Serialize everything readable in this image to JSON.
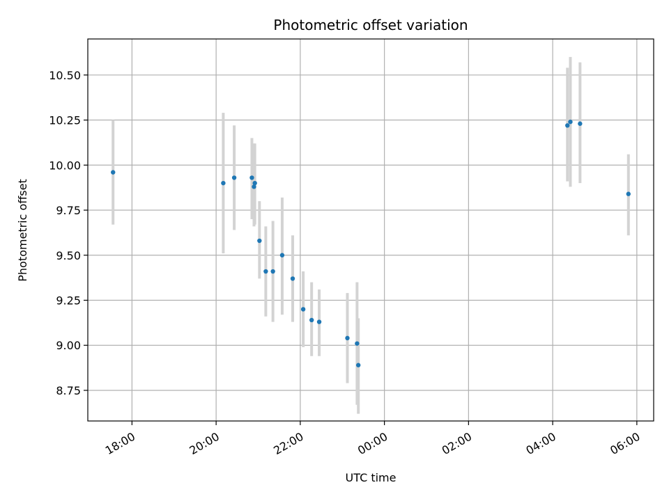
{
  "chart_data": {
    "type": "scatter",
    "title": "Photometric offset variation",
    "xlabel": "UTC time",
    "ylabel": "Photometric offset",
    "x_unit": "hours",
    "xlim": [
      16.95,
      30.4
    ],
    "ylim": [
      8.58,
      10.7
    ],
    "x_ticks": [
      {
        "value": 18,
        "label": "18:00"
      },
      {
        "value": 20,
        "label": "20:00"
      },
      {
        "value": 22,
        "label": "22:00"
      },
      {
        "value": 24,
        "label": "00:00"
      },
      {
        "value": 26,
        "label": "02:00"
      },
      {
        "value": 28,
        "label": "04:00"
      },
      {
        "value": 30,
        "label": "06:00"
      }
    ],
    "y_ticks": [
      {
        "value": 8.75,
        "label": "8.75"
      },
      {
        "value": 9.0,
        "label": "9.00"
      },
      {
        "value": 9.25,
        "label": "9.25"
      },
      {
        "value": 9.5,
        "label": "9.50"
      },
      {
        "value": 9.75,
        "label": "9.75"
      },
      {
        "value": 10.0,
        "label": "10.00"
      },
      {
        "value": 10.25,
        "label": "10.25"
      },
      {
        "value": 10.5,
        "label": "10.50"
      }
    ],
    "grid": true,
    "colors": {
      "point": "#1f77b4",
      "errorbar": "#d3d3d3",
      "grid": "#b0b0b0"
    },
    "points": [
      {
        "x": 17.55,
        "y": 9.96,
        "lo": 9.67,
        "hi": 10.25
      },
      {
        "x": 20.17,
        "y": 9.9,
        "lo": 9.51,
        "hi": 10.29
      },
      {
        "x": 20.43,
        "y": 9.93,
        "lo": 9.64,
        "hi": 10.22
      },
      {
        "x": 20.85,
        "y": 9.93,
        "lo": 9.7,
        "hi": 10.15
      },
      {
        "x": 20.9,
        "y": 9.88,
        "lo": 9.66,
        "hi": 10.12
      },
      {
        "x": 20.92,
        "y": 9.9,
        "lo": 9.67,
        "hi": 10.12
      },
      {
        "x": 21.03,
        "y": 9.58,
        "lo": 9.37,
        "hi": 9.8
      },
      {
        "x": 21.18,
        "y": 9.41,
        "lo": 9.16,
        "hi": 9.66
      },
      {
        "x": 21.35,
        "y": 9.41,
        "lo": 9.13,
        "hi": 9.69
      },
      {
        "x": 21.57,
        "y": 9.5,
        "lo": 9.17,
        "hi": 9.82
      },
      {
        "x": 21.82,
        "y": 9.37,
        "lo": 9.13,
        "hi": 9.61
      },
      {
        "x": 22.07,
        "y": 9.2,
        "lo": 8.99,
        "hi": 9.41
      },
      {
        "x": 22.27,
        "y": 9.14,
        "lo": 8.94,
        "hi": 9.35
      },
      {
        "x": 22.45,
        "y": 9.13,
        "lo": 8.94,
        "hi": 9.31
      },
      {
        "x": 23.12,
        "y": 9.04,
        "lo": 8.79,
        "hi": 9.29
      },
      {
        "x": 23.35,
        "y": 9.01,
        "lo": 8.67,
        "hi": 9.35
      },
      {
        "x": 23.38,
        "y": 8.89,
        "lo": 8.62,
        "hi": 9.15
      },
      {
        "x": 28.35,
        "y": 10.22,
        "lo": 9.91,
        "hi": 10.54
      },
      {
        "x": 28.42,
        "y": 10.24,
        "lo": 9.88,
        "hi": 10.6
      },
      {
        "x": 28.65,
        "y": 10.23,
        "lo": 9.9,
        "hi": 10.57
      },
      {
        "x": 29.8,
        "y": 9.84,
        "lo": 9.61,
        "hi": 10.06
      }
    ]
  }
}
